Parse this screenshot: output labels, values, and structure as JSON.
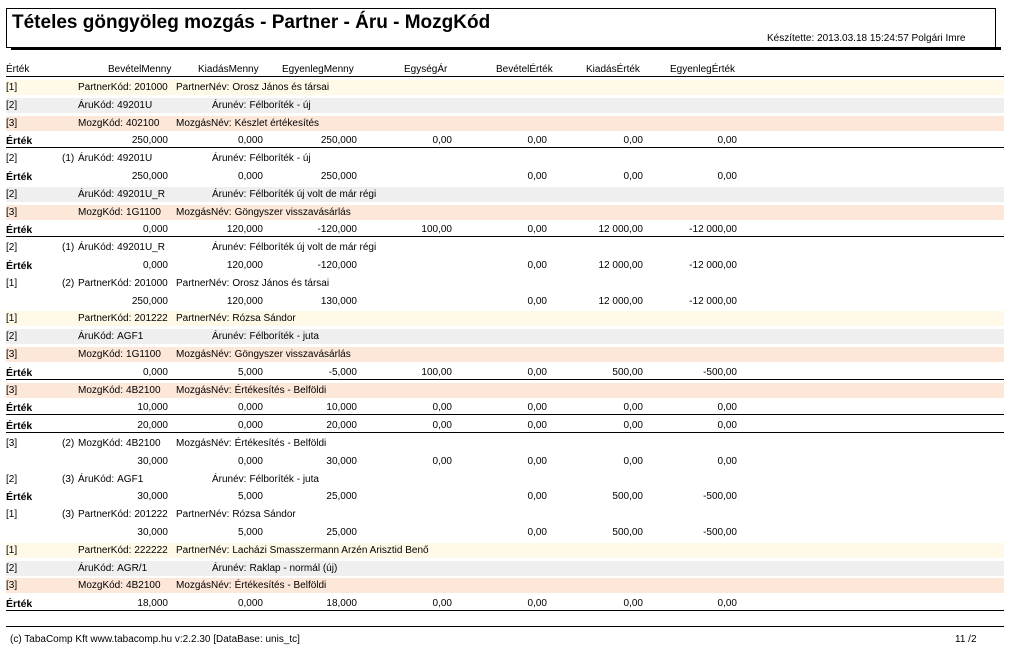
{
  "report": {
    "title": "Tételes göngyöleg mozgás - Partner - Áru - MozgKód",
    "made_by": "Készítette:  2013.03.18 15:24:57   Polgári Imre"
  },
  "columns": {
    "label": "Érték",
    "names": [
      "BevételMenny",
      "KiadásMenny",
      "EgyenlegMenny",
      "EgységÁr",
      "BevételÉrték",
      "KiadásÉrték",
      "EgyenlegÉrték"
    ]
  },
  "rows": [
    {
      "kind": "lvl1",
      "level": "[1]",
      "ord": "",
      "code_label": "PartnerKód:",
      "code": "201000",
      "name_label": "PartnerNév:",
      "name": "Orosz János és társai"
    },
    {
      "kind": "lvl2",
      "level": "[2]",
      "ord": "",
      "code_label": "ÁruKód:",
      "code": "49201U",
      "name_label": "Árunév:",
      "name": "Félboríték - új"
    },
    {
      "kind": "lvl3",
      "level": "[3]",
      "ord": "",
      "code_label": "MozgKód:",
      "code": "402100",
      "name_label": "MozgásNév:",
      "name": "Készlet értékesítés"
    },
    {
      "kind": "val",
      "label": "Érték",
      "v": [
        "250,000",
        "0,000",
        "250,000",
        "0,00",
        "0,00",
        "0,00",
        "0,00"
      ],
      "rule": true
    },
    {
      "kind": "sum",
      "level": "[2]",
      "ord": "(1)",
      "code_label": "ÁruKód:",
      "code": "49201U",
      "name_label": "Árunév:",
      "name": "Félboríték - új"
    },
    {
      "kind": "val",
      "label": "Érték",
      "v": [
        "250,000",
        "0,000",
        "250,000",
        "",
        "0,00",
        "0,00",
        "0,00"
      ],
      "rule": false
    },
    {
      "kind": "lvl2",
      "level": "[2]",
      "ord": "",
      "code_label": "ÁruKód:",
      "code": "49201U_R",
      "name_label": "Árunév:",
      "name": "Félboríték új volt de már régi"
    },
    {
      "kind": "lvl3",
      "level": "[3]",
      "ord": "",
      "code_label": "MozgKód:",
      "code": "1G1100",
      "name_label": "MozgásNév:",
      "name": "Göngyszer visszavásárlás"
    },
    {
      "kind": "val",
      "label": "Érték",
      "v": [
        "0,000",
        "120,000",
        "-120,000",
        "100,00",
        "0,00",
        "12 000,00",
        "-12 000,00"
      ],
      "rule": true
    },
    {
      "kind": "sum",
      "level": "[2]",
      "ord": "(1)",
      "code_label": "ÁruKód:",
      "code": "49201U_R",
      "name_label": "Árunév:",
      "name": "Félboríték új volt de már régi"
    },
    {
      "kind": "val",
      "label": "Érték",
      "v": [
        "0,000",
        "120,000",
        "-120,000",
        "",
        "0,00",
        "12 000,00",
        "-12 000,00"
      ],
      "rule": false
    },
    {
      "kind": "sum",
      "level": "[1]",
      "ord": "(2)",
      "code_label": "PartnerKód:",
      "code": "201000",
      "name_label": "PartnerNév:",
      "name": "Orosz János és társai"
    },
    {
      "kind": "val",
      "label": "",
      "v": [
        "250,000",
        "120,000",
        "130,000",
        "",
        "0,00",
        "12 000,00",
        "-12 000,00"
      ],
      "rule": false
    },
    {
      "kind": "lvl1",
      "level": "[1]",
      "ord": "",
      "code_label": "PartnerKód:",
      "code": "201222",
      "name_label": "PartnerNév:",
      "name": "Rózsa Sándor"
    },
    {
      "kind": "lvl2",
      "level": "[2]",
      "ord": "",
      "code_label": "ÁruKód:",
      "code": "AGF1",
      "name_label": "Árunév:",
      "name": "Félboríték - juta"
    },
    {
      "kind": "lvl3",
      "level": "[3]",
      "ord": "",
      "code_label": "MozgKód:",
      "code": "1G1100",
      "name_label": "MozgásNév:",
      "name": "Göngyszer visszavásárlás"
    },
    {
      "kind": "val",
      "label": "Érték",
      "v": [
        "0,000",
        "5,000",
        "-5,000",
        "100,00",
        "0,00",
        "500,00",
        "-500,00"
      ],
      "rule": true
    },
    {
      "kind": "lvl3",
      "level": "[3]",
      "ord": "",
      "code_label": "MozgKód:",
      "code": "4B2100",
      "name_label": "MozgásNév:",
      "name": "Értékesítés - Belföldi"
    },
    {
      "kind": "val",
      "label": "Érték",
      "v": [
        "10,000",
        "0,000",
        "10,000",
        "0,00",
        "0,00",
        "0,00",
        "0,00"
      ],
      "rule": true
    },
    {
      "kind": "val",
      "label": "Érték",
      "v": [
        "20,000",
        "0,000",
        "20,000",
        "0,00",
        "0,00",
        "0,00",
        "0,00"
      ],
      "rule": true
    },
    {
      "kind": "sum",
      "level": "[3]",
      "ord": "(2)",
      "code_label": "MozgKód:",
      "code": "4B2100",
      "name_label": "MozgásNév:",
      "name": "Értékesítés - Belföldi"
    },
    {
      "kind": "val",
      "label": "",
      "v": [
        "30,000",
        "0,000",
        "30,000",
        "0,00",
        "0,00",
        "0,00",
        "0,00"
      ],
      "rule": false
    },
    {
      "kind": "sum",
      "level": "[2]",
      "ord": "(3)",
      "code_label": "ÁruKód:",
      "code": "AGF1",
      "name_label": "Árunév:",
      "name": "Félboríték - juta"
    },
    {
      "kind": "val",
      "label": "Érték",
      "v": [
        "30,000",
        "5,000",
        "25,000",
        "",
        "0,00",
        "500,00",
        "-500,00"
      ],
      "rule": false
    },
    {
      "kind": "sum",
      "level": "[1]",
      "ord": "(3)",
      "code_label": "PartnerKód:",
      "code": "201222",
      "name_label": "PartnerNév:",
      "name": "Rózsa Sándor"
    },
    {
      "kind": "val",
      "label": "",
      "v": [
        "30,000",
        "5,000",
        "25,000",
        "",
        "0,00",
        "500,00",
        "-500,00"
      ],
      "rule": false
    },
    {
      "kind": "lvl1",
      "level": "[1]",
      "ord": "",
      "code_label": "PartnerKód:",
      "code": "222222",
      "name_label": "PartnerNév:",
      "name": "Lacházi Smasszermann Arzén Arisztid Benő"
    },
    {
      "kind": "lvl2",
      "level": "[2]",
      "ord": "",
      "code_label": "ÁruKód:",
      "code": "AGR/1",
      "name_label": "Árunév:",
      "name": "Raklap - normál (új)"
    },
    {
      "kind": "lvl3",
      "level": "[3]",
      "ord": "",
      "code_label": "MozgKód:",
      "code": "4B2100",
      "name_label": "MozgásNév:",
      "name": "Értékesítés - Belföldi"
    },
    {
      "kind": "val",
      "label": "Érték",
      "v": [
        "18,000",
        "0,000",
        "18,000",
        "0,00",
        "0,00",
        "0,00",
        "0,00"
      ],
      "rule": true
    }
  ],
  "footer": {
    "left": "(c) TabaComp Kft  www.tabacomp.hu  v:2.2.30 [DataBase: unis_tc]",
    "page": "11  /2"
  }
}
